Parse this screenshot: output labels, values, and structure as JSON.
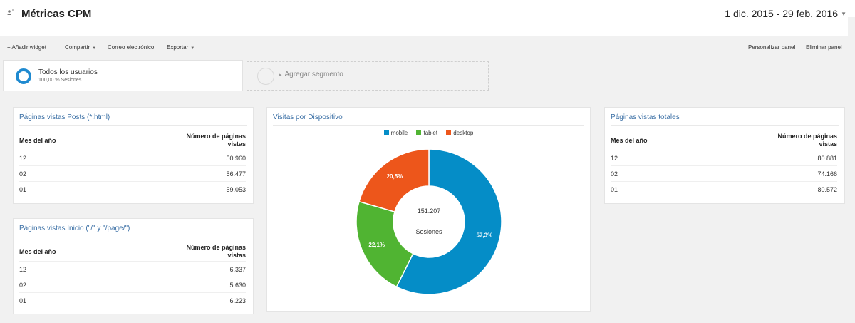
{
  "header": {
    "title": "Métricas CPM",
    "date_range": "1 dic. 2015 - 29 feb. 2016"
  },
  "toolbar": {
    "add_widget": "+ Añadir widget",
    "share": "Compartir",
    "email": "Correo electrónico",
    "export": "Exportar",
    "customize": "Personalizar panel",
    "delete": "Eliminar panel"
  },
  "segments": {
    "active_name": "Todos los usuarios",
    "active_sub": "100,00 % Sesiones",
    "add_label": "Agregar segmento"
  },
  "widget_posts": {
    "title": "Páginas vistas Posts (*.html)",
    "col1": "Mes del año",
    "col2_line1": "Número de páginas",
    "col2_line2": "vistas",
    "rows": [
      {
        "month": "12",
        "value": "50.960"
      },
      {
        "month": "02",
        "value": "56.477"
      },
      {
        "month": "01",
        "value": "59.053"
      }
    ]
  },
  "widget_home": {
    "title": "Páginas vistas Inicio (\"/\" y \"/page/\")",
    "col1": "Mes del año",
    "col2_line1": "Número de páginas",
    "col2_line2": "vistas",
    "rows": [
      {
        "month": "12",
        "value": "6.337"
      },
      {
        "month": "02",
        "value": "5.630"
      },
      {
        "month": "01",
        "value": "6.223"
      }
    ]
  },
  "widget_total": {
    "title": "Páginas vistas totales",
    "col1": "Mes del año",
    "col2_line1": "Número de páginas",
    "col2_line2": "vistas",
    "rows": [
      {
        "month": "12",
        "value": "80.881"
      },
      {
        "month": "02",
        "value": "74.166"
      },
      {
        "month": "01",
        "value": "80.572"
      }
    ]
  },
  "widget_devices": {
    "title": "Visitas por Dispositivo",
    "center_value": "151.207",
    "center_label": "Sesiones"
  },
  "chart_data": {
    "type": "pie",
    "donut": true,
    "categories": [
      "mobile",
      "tablet",
      "desktop"
    ],
    "values": [
      57.3,
      22.1,
      20.5
    ],
    "value_labels": [
      "57,3%",
      "22,1%",
      "20,5%"
    ],
    "colors": [
      "#058dc7",
      "#50b432",
      "#ed561b"
    ],
    "legend_position": "top"
  }
}
